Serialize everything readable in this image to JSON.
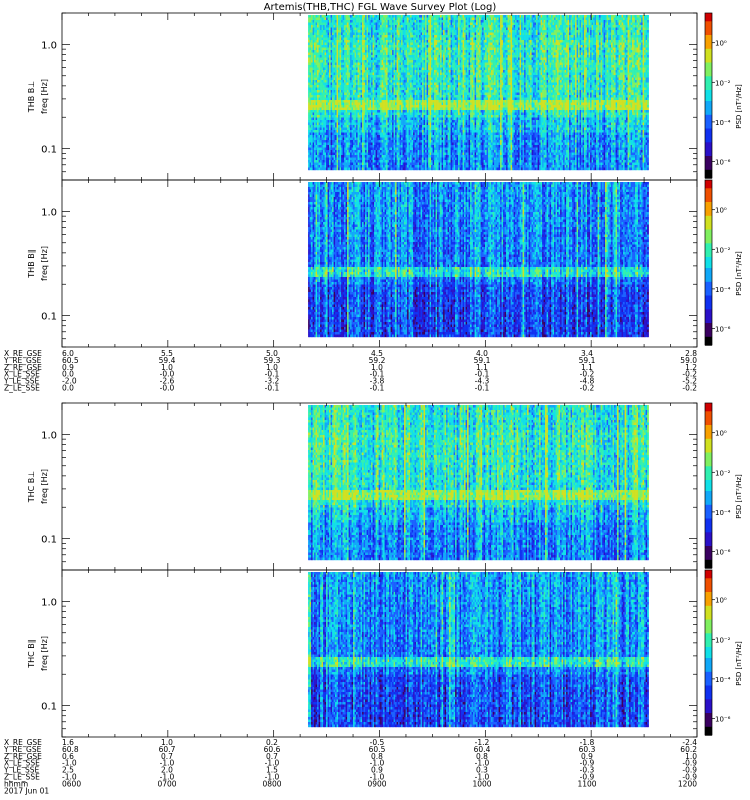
{
  "title": "Artemis(THB,THC) FGL Wave Survey Plot (Log)",
  "chart_data": [
    {
      "type": "heatmap",
      "probe": "THB",
      "panel_label": "THB B⊥",
      "ylabel": "freq [Hz]",
      "yscale": "log",
      "ylim": [
        0.05,
        2.0
      ],
      "yticks": [
        {
          "v": 1.0,
          "label": "1.0"
        },
        {
          "v": 0.1,
          "label": "0.1"
        }
      ],
      "xlim": [
        0,
        240
      ],
      "data_x_range": [
        93,
        240
      ],
      "zlabel": "PSD [nT²/Hz]",
      "zscale": "log",
      "ztick_labels": [
        "10⁰",
        "10⁻²",
        "10⁻⁴",
        "10⁻⁶"
      ],
      "colormap": [
        "#000000",
        "#3a0060",
        "#2a10c8",
        "#1030f0",
        "#1a60ff",
        "#10a8f8",
        "#10e0e8",
        "#30f0b0",
        "#80f060",
        "#d0e020",
        "#f8a000",
        "#f05000",
        "#d00000"
      ]
    },
    {
      "type": "heatmap",
      "probe": "THB",
      "panel_label": "THB B∥",
      "ylabel": "freq [Hz]",
      "yscale": "log",
      "ylim": [
        0.05,
        2.0
      ],
      "yticks": [
        {
          "v": 1.0,
          "label": "1.0"
        },
        {
          "v": 0.1,
          "label": "0.1"
        }
      ],
      "xlim": [
        0,
        240
      ],
      "data_x_range": [
        93,
        240
      ],
      "zlabel": "PSD [nT²/Hz]",
      "zscale": "log",
      "ztick_labels": [
        "10⁰",
        "10⁻²",
        "10⁻⁴",
        "10⁻⁶"
      ]
    },
    {
      "type": "heatmap",
      "probe": "THC",
      "panel_label": "THC B⊥",
      "ylabel": "freq [Hz]",
      "yscale": "log",
      "ylim": [
        0.05,
        2.0
      ],
      "yticks": [
        {
          "v": 1.0,
          "label": "1.0"
        },
        {
          "v": 0.1,
          "label": "0.1"
        }
      ],
      "xlim": [
        0,
        240
      ],
      "data_x_range": [
        93,
        240
      ],
      "zlabel": "PSD [nT²/Hz]",
      "zscale": "log",
      "ztick_labels": [
        "10⁰",
        "10⁻²",
        "10⁻⁴",
        "10⁻⁶"
      ]
    },
    {
      "type": "heatmap",
      "probe": "THC",
      "panel_label": "THC B∥",
      "ylabel": "freq [Hz]",
      "yscale": "log",
      "ylim": [
        0.05,
        2.0
      ],
      "yticks": [
        {
          "v": 1.0,
          "label": "1.0"
        },
        {
          "v": 0.1,
          "label": "0.1"
        }
      ],
      "xlim": [
        0,
        240
      ],
      "data_x_range": [
        93,
        240
      ],
      "zlabel": "PSD [nT²/Hz]",
      "zscale": "log",
      "ztick_labels": [
        "10⁰",
        "10⁻²",
        "10⁻⁴",
        "10⁻⁶"
      ]
    }
  ],
  "thb_ephemeris": {
    "labels": [
      "X_RE_GSE",
      "Y_RE_GSE",
      "Z_RE_GSE",
      "X_LE_SSE",
      "Y_LE_SSE",
      "Z_LE_SSE"
    ],
    "columns": [
      [
        "6.0",
        "60.5",
        "0.9",
        "0.0",
        "-2.0",
        "0.0"
      ],
      [
        "5.5",
        "59.4",
        "1.0",
        "-0.0",
        "-2.6",
        "-0.0"
      ],
      [
        "5.0",
        "59.3",
        "1.0",
        "-0.1",
        "-3.2",
        "-0.1"
      ],
      [
        "4.5",
        "59.2",
        "1.0",
        "-0.1",
        "-3.8",
        "-0.1"
      ],
      [
        "4.0",
        "59.1",
        "1.1",
        "-0.1",
        "-4.3",
        "-0.1"
      ],
      [
        "3.4",
        "59.1",
        "1.1",
        "-0.2",
        "-4.8",
        "-0.2"
      ],
      [
        "2.8",
        "59.0",
        "1.2",
        "-0.2",
        "-5.2",
        "-0.2"
      ]
    ]
  },
  "thc_ephemeris": {
    "labels": [
      "X_RE_GSE",
      "Y_RE_GSE",
      "Z_RE_GSE",
      "X_LE_SSE",
      "Y_LE_SSE",
      "Z_LE_SSE",
      "hhmm",
      "2017 Jun 01"
    ],
    "columns": [
      [
        "1.6",
        "60.8",
        "0.6",
        "-1.0",
        "2.5",
        "-1.0",
        "0600"
      ],
      [
        "1.0",
        "60.7",
        "0.7",
        "-1.0",
        "2.0",
        "-1.0",
        "0700"
      ],
      [
        "0.2",
        "60.6",
        "0.7",
        "-1.0",
        "1.5",
        "-1.0",
        "0800"
      ],
      [
        "-0.5",
        "60.5",
        "0.8",
        "-1.0",
        "0.9",
        "-1.0",
        "0900"
      ],
      [
        "-1.2",
        "60.4",
        "0.8",
        "-1.0",
        "0.3",
        "-1.0",
        "1000"
      ],
      [
        "-1.8",
        "60.3",
        "0.9",
        "-0.9",
        "-0.3",
        "-0.9",
        "1100"
      ],
      [
        "-2.4",
        "60.2",
        "1.0",
        "-0.9",
        "-0.9",
        "-0.9",
        "1200"
      ]
    ]
  }
}
